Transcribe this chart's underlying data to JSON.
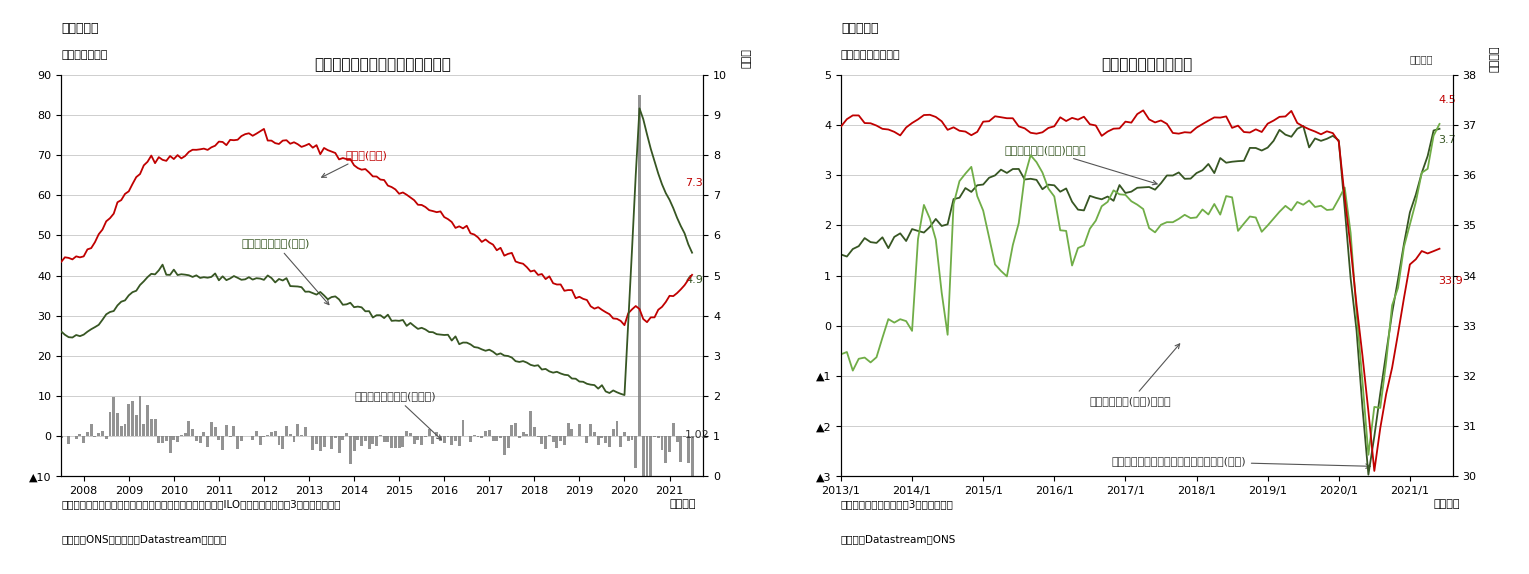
{
  "fig1": {
    "title": "英国の失業保険申請件数、失業率",
    "panel_label": "（図表１）",
    "ylabel_left": "（件数、万件）",
    "ylabel_right": "（％）",
    "note1": "（注）季節調整値、割合＝申請者／（雇用者＋申請者）。ILO基準失業率は後方3か月移動平均。",
    "note2": "（資料）ONSのデータをDatastreamより取得",
    "month_label": "（月次）",
    "ylim_left": [
      -10,
      90
    ],
    "ylim_right": [
      0,
      10
    ],
    "yticks_left": [
      -10,
      0,
      10,
      20,
      30,
      40,
      50,
      60,
      70,
      80,
      90
    ],
    "ytick_left_labels": [
      "▲10",
      "0",
      "10",
      "20",
      "30",
      "40",
      "50",
      "60",
      "70",
      "80",
      "90"
    ],
    "yticks_right": [
      0,
      1,
      2,
      3,
      4,
      5,
      6,
      7,
      8,
      9,
      10
    ],
    "xtick_years": [
      2008,
      2009,
      2010,
      2011,
      2012,
      2013,
      2014,
      2015,
      2016,
      2017,
      2018,
      2019,
      2020,
      2021
    ]
  },
  "fig2": {
    "title": "賃金・労働時間の推移",
    "panel_label": "（図表２）",
    "ylabel_left": "（前年同期比、％）",
    "ylabel_right": "（時間）",
    "note1": "（注）季節調整値、後方3か月移動平均",
    "note2": "（資料）Datastream、ONS",
    "month_label": "（月次）",
    "ylim_left": [
      -3,
      5
    ],
    "ylim_right": [
      30,
      38
    ],
    "yticks_left": [
      -3,
      -2,
      -1,
      0,
      1,
      2,
      3,
      4,
      5
    ],
    "ytick_left_labels": [
      "▲3",
      "▲2",
      "▲1",
      "0",
      "1",
      "2",
      "3",
      "4",
      "5"
    ],
    "yticks_right": [
      30,
      31,
      32,
      33,
      34,
      35,
      36,
      37,
      38
    ],
    "xtick_years": [
      2013,
      2014,
      2015,
      2016,
      2017,
      2018,
      2019,
      2020,
      2021
    ],
    "xtick_labels": [
      "2013/1",
      "2014/1",
      "2015/1",
      "2016/1",
      "2017/1",
      "2018/1",
      "2019/1",
      "2020/1",
      "2021/1"
    ]
  },
  "colors": {
    "red": "#c00000",
    "dark_green": "#375623",
    "light_green": "#70ad47",
    "bar_color": "#808080",
    "grid": "#bbbbbb"
  }
}
